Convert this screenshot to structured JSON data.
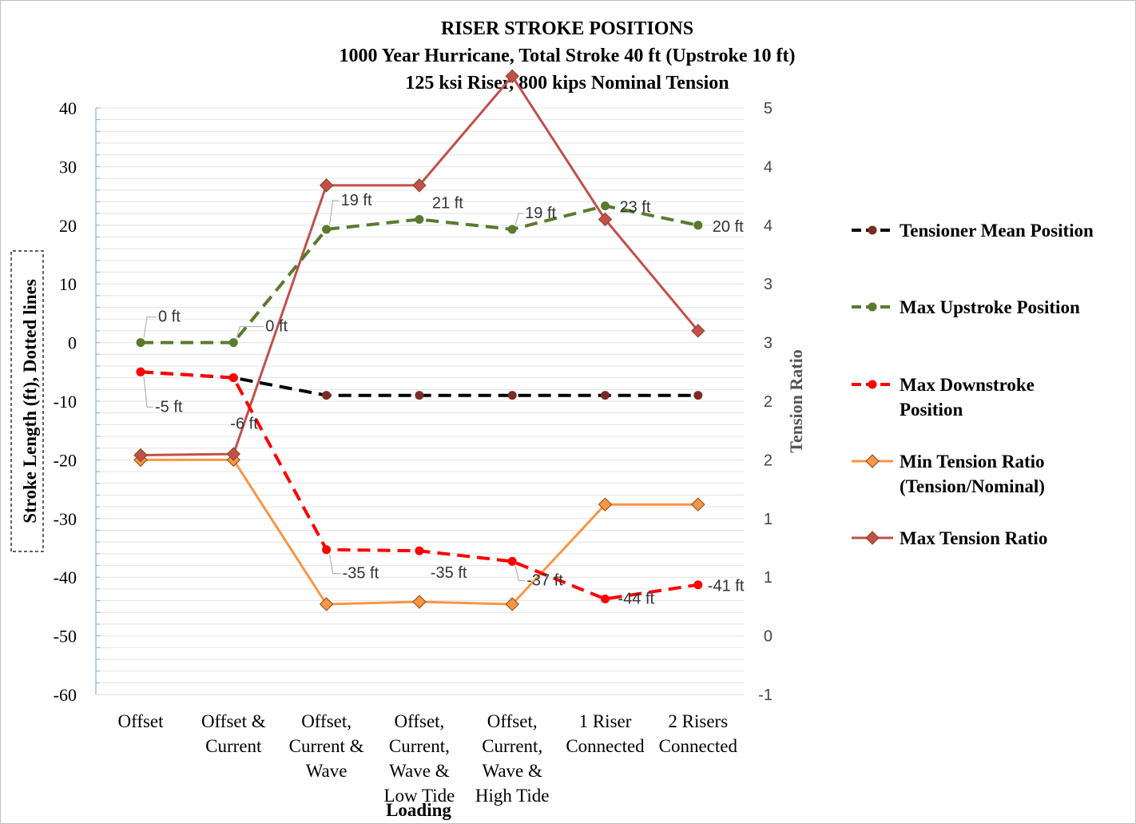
{
  "chart_data": {
    "type": "line",
    "title_lines": [
      "RISER STROKE POSITIONS",
      "1000 Year Hurricane, Total Stroke 40 ft (Upstroke 10 ft)",
      "125 ksi Riser, 800 kips Nominal Tension"
    ],
    "xlabel": "Loading",
    "ylabel_left": "Stroke Length (ft),  Dotted lines",
    "ylabel_right": "Tension Ratio",
    "categories": [
      [
        "Offset"
      ],
      [
        "Offset &",
        "Current"
      ],
      [
        "Offset,",
        "Current &",
        "Wave"
      ],
      [
        "Offset,",
        "Current,",
        "Wave &",
        "Low Tide"
      ],
      [
        "Offset,",
        "Current,",
        "Wave &",
        "High Tide"
      ],
      [
        "1 Riser",
        "Connected"
      ],
      [
        "2 Risers",
        "Connected"
      ]
    ],
    "y_left": {
      "min": -60,
      "max": 40,
      "step": 10,
      "ticks": [
        "40",
        "30",
        "20",
        "10",
        "0",
        "-10",
        "-20",
        "-30",
        "-40",
        "-50",
        "-60"
      ]
    },
    "y_right": {
      "min": -1,
      "max": 4,
      "step": 0.5,
      "ticks": [
        "5",
        "4",
        "4",
        "3",
        "3",
        "2",
        "2",
        "1",
        "1",
        "0",
        "-1"
      ]
    },
    "legend_position": "right",
    "series": [
      {
        "name": "Tensioner Mean Position",
        "axis": "left",
        "style": "dashed",
        "color": "#000000",
        "marker": "circle",
        "marker_color": "#7b2c22",
        "values": [
          -5,
          -6,
          -9,
          -9,
          -9,
          -9,
          -9
        ]
      },
      {
        "name": "Max Upstroke Position",
        "axis": "left",
        "style": "dashed",
        "color": "#5a7a2e",
        "marker": "circle",
        "marker_color": "#5a7a2e",
        "values": [
          0,
          0,
          19.3,
          21,
          19.3,
          23.3,
          20
        ],
        "labels": [
          "0 ft",
          "0 ft",
          "19 ft",
          "21 ft",
          "19 ft",
          "23 ft",
          "20 ft"
        ]
      },
      {
        "name": "Max Downstroke Position",
        "axis": "left",
        "style": "dashed",
        "color": "#ff0000",
        "marker": "circle",
        "marker_color": "#ff0000",
        "values": [
          -5,
          -6,
          -35.3,
          -35.5,
          -37.3,
          -43.7,
          -41.3
        ],
        "labels": [
          "-5 ft",
          "-6 ft",
          "-35 ft",
          "-35 ft",
          "-37 ft",
          "-44 ft",
          "-41 ft"
        ]
      },
      {
        "name": "Min Tension Ratio",
        "name_line2": "(Tension/Nominal)",
        "axis": "right",
        "style": "solid",
        "color": "#f79646",
        "marker": "diamond",
        "marker_color": "#f79646",
        "values": [
          1.0,
          1.0,
          -0.23,
          -0.21,
          -0.23,
          0.62,
          0.62
        ]
      },
      {
        "name": "Max Tension Ratio",
        "axis": "right",
        "style": "solid",
        "color": "#c0504d",
        "marker": "diamond",
        "marker_color": "#c0504d",
        "values": [
          1.04,
          1.05,
          3.34,
          3.34,
          4.27,
          3.05,
          2.1
        ]
      }
    ]
  }
}
